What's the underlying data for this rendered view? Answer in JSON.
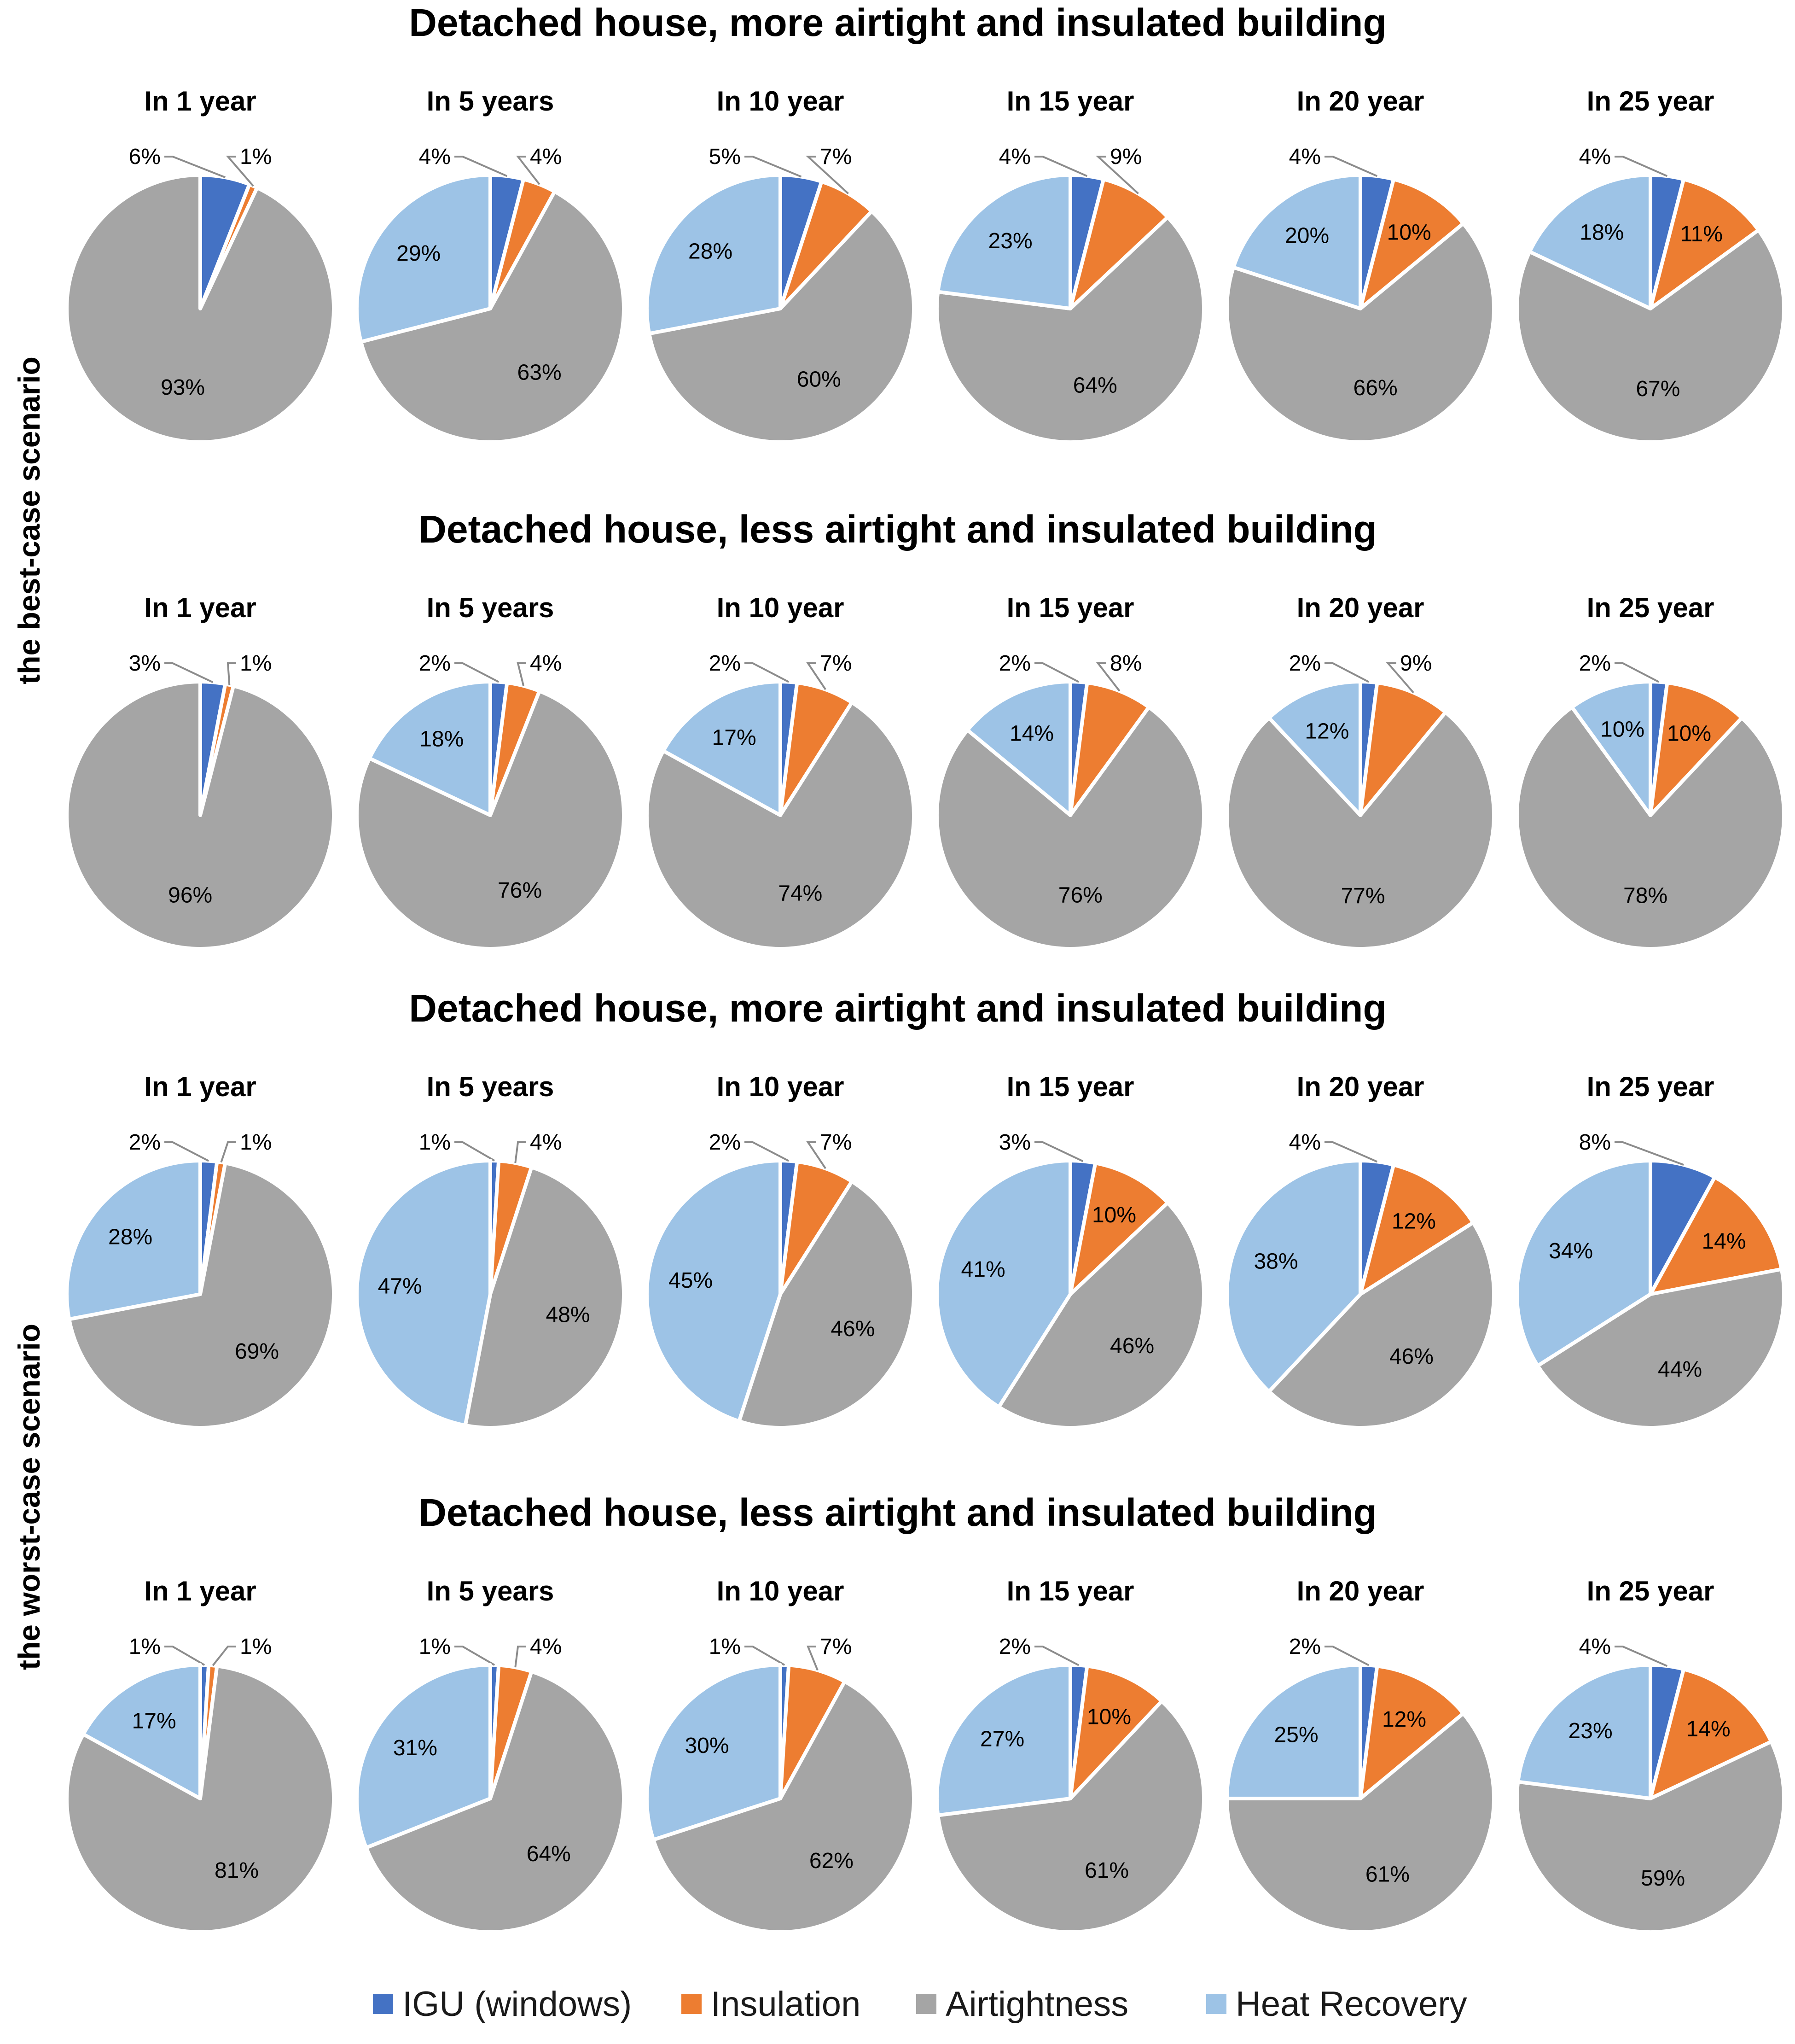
{
  "legend": [
    {
      "label": "IGU (windows)",
      "color": "#4472C4"
    },
    {
      "label": "Insulation",
      "color": "#ED7D31"
    },
    {
      "label": "Airtightness",
      "color": "#A5A5A5"
    },
    {
      "label": "Heat Recovery",
      "color": "#9DC3E6"
    }
  ],
  "side_labels": [
    "the best-case scenario",
    "the worst-case scenario"
  ],
  "chart_data": {
    "type": "pie",
    "series_order": [
      "IGU (windows)",
      "Insulation",
      "Airtightness",
      "Heat Recovery"
    ],
    "panels": [
      {
        "title": "Detached house, more airtight and insulated building",
        "pies": [
          {
            "label": "In 1 year",
            "values": [
              6,
              1,
              93,
              0
            ]
          },
          {
            "label": "In 5 years",
            "values": [
              4,
              4,
              63,
              29
            ]
          },
          {
            "label": "In 10 year",
            "values": [
              5,
              7,
              60,
              28
            ]
          },
          {
            "label": "In 15 year",
            "values": [
              4,
              9,
              64,
              23
            ]
          },
          {
            "label": "In 20 year",
            "values": [
              4,
              10,
              66,
              20
            ]
          },
          {
            "label": "In 25 year",
            "values": [
              4,
              11,
              67,
              18
            ]
          }
        ]
      },
      {
        "title": "Detached house, less airtight and insulated building",
        "pies": [
          {
            "label": "In 1 year",
            "values": [
              3,
              1,
              96,
              0
            ]
          },
          {
            "label": "In 5 years",
            "values": [
              2,
              4,
              76,
              18
            ]
          },
          {
            "label": "In 10 year",
            "values": [
              2,
              7,
              74,
              17
            ]
          },
          {
            "label": "In 15 year",
            "values": [
              2,
              8,
              76,
              14
            ]
          },
          {
            "label": "In 20 year",
            "values": [
              2,
              9,
              77,
              12
            ]
          },
          {
            "label": "In 25 year",
            "values": [
              2,
              10,
              78,
              10
            ]
          }
        ]
      },
      {
        "title": "Detached house, more airtight and insulated building",
        "pies": [
          {
            "label": "In 1 year",
            "values": [
              2,
              1,
              69,
              28
            ]
          },
          {
            "label": "In 5 years",
            "values": [
              1,
              4,
              48,
              47
            ]
          },
          {
            "label": "In 10 year",
            "values": [
              2,
              7,
              46,
              45
            ]
          },
          {
            "label": "In 15 year",
            "values": [
              3,
              10,
              46,
              41
            ]
          },
          {
            "label": "In 20 year",
            "values": [
              4,
              12,
              46,
              38
            ]
          },
          {
            "label": "In 25 year",
            "values": [
              8,
              14,
              44,
              34
            ]
          }
        ]
      },
      {
        "title": "Detached house, less airtight and insulated building",
        "pies": [
          {
            "label": "In 1 year",
            "values": [
              1,
              1,
              81,
              17
            ]
          },
          {
            "label": "In 5 years",
            "values": [
              1,
              4,
              64,
              31
            ]
          },
          {
            "label": "In 10 year",
            "values": [
              1,
              7,
              62,
              30
            ]
          },
          {
            "label": "In 15 year",
            "values": [
              2,
              10,
              61,
              27
            ]
          },
          {
            "label": "In 20 year",
            "values": [
              2,
              12,
              61,
              25
            ]
          },
          {
            "label": "In 25 year",
            "values": [
              4,
              14,
              59,
              23
            ]
          }
        ]
      }
    ]
  }
}
